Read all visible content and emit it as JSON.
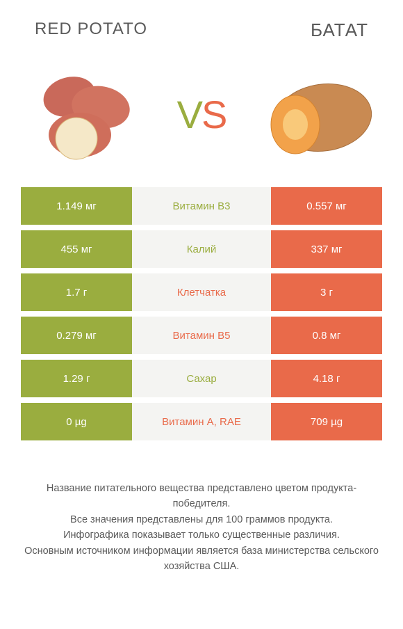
{
  "colors": {
    "left_bar": "#9aad3f",
    "right_bar": "#e96a4a",
    "mid_bg": "#f4f4f2",
    "text": "#5a5a5a",
    "white": "#ffffff"
  },
  "header": {
    "left_title": "RED POTATO",
    "right_title": "БАТАТ"
  },
  "vs": {
    "v": "V",
    "s": "S"
  },
  "rows": [
    {
      "left": "1.149 мг",
      "label": "Витамин B3",
      "right": "0.557 мг",
      "winner": "left"
    },
    {
      "left": "455 мг",
      "label": "Калий",
      "right": "337 мг",
      "winner": "left"
    },
    {
      "left": "1.7 г",
      "label": "Клетчатка",
      "right": "3 г",
      "winner": "right"
    },
    {
      "left": "0.279 мг",
      "label": "Витамин B5",
      "right": "0.8 мг",
      "winner": "right"
    },
    {
      "left": "1.29 г",
      "label": "Сахар",
      "right": "4.18 г",
      "winner": "left"
    },
    {
      "left": "0 µg",
      "label": "Витамин A, RAE",
      "right": "709 µg",
      "winner": "right"
    }
  ],
  "footnotes": [
    "Название питательного вещества представлено цветом продукта-победителя.",
    "Все значения представлены для 100 граммов продукта.",
    "Инфографика показывает только существенные различия.",
    "Основным источником информации является база министерства сельского хозяйства США."
  ]
}
